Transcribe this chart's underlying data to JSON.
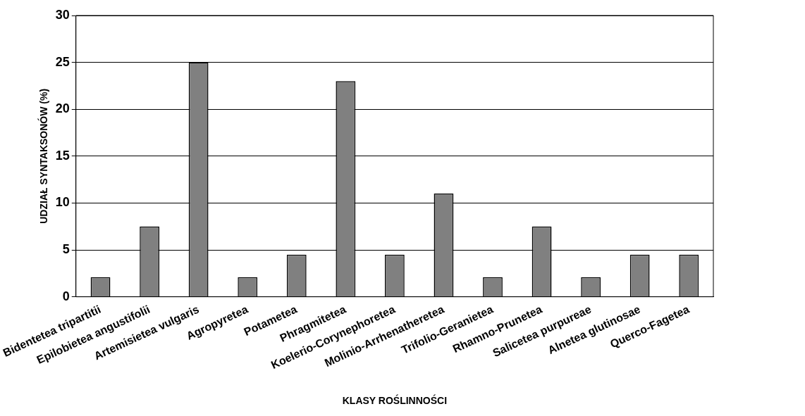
{
  "chart_data": {
    "type": "bar",
    "xlabel": "KLASY ROŚLINNOŚCI",
    "ylabel": "UDZIAŁ SYNTAKSONÓW (%)",
    "categories": [
      "Bidentetea tripartitii",
      "Epilobietea angustifolii",
      "Artemisietea vulgaris",
      "Agropyretea",
      "Potametea",
      "Phragmitetea",
      "Koelerio-Corynephoretea",
      "Molinio-Arrhenatheretea",
      "Trifolio-Geranietea",
      "Rhamno-Prunetea",
      "Salicetea purpureae",
      "Alnetea glutinosae",
      "Querco-Fagetea"
    ],
    "values": [
      2.1,
      7.5,
      25,
      2.1,
      4.5,
      23,
      4.5,
      11,
      2.1,
      7.5,
      2.1,
      4.5,
      4.5
    ],
    "color": "#808080",
    "ylim": [
      0,
      30
    ],
    "yticks": [
      0,
      5,
      10,
      15,
      20,
      25,
      30
    ],
    "grid": "y",
    "legend": false
  }
}
